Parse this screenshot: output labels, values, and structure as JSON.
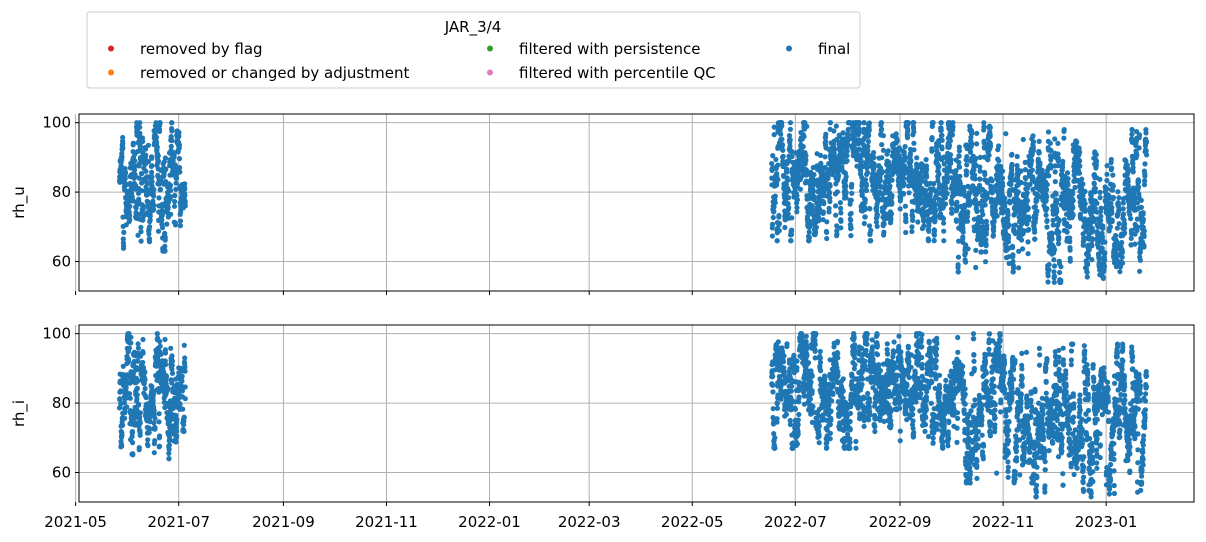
{
  "chart_data": [
    {
      "type": "scatter",
      "title": "",
      "xlabel": "",
      "ylabel": "rh_u",
      "ylim": [
        51.5,
        102.5
      ],
      "xlim": [
        "2021-05-03",
        "2023-02-22"
      ],
      "yticks": [
        60,
        80,
        100
      ],
      "grid": true,
      "sharex_ticklabels_hidden": true,
      "segments": [
        {
          "series": "final",
          "start": "2021-05-27",
          "end": "2021-07-05",
          "y_min": 63,
          "y_max": 100,
          "y_center": 82
        },
        {
          "series": "final",
          "start": "2022-06-17",
          "end": "2022-10-05",
          "y_min": 66,
          "y_max": 100,
          "y_center": 88
        },
        {
          "series": "final",
          "start": "2022-10-05",
          "end": "2022-11-20",
          "y_min": 57,
          "y_max": 100,
          "y_center": 80
        },
        {
          "series": "final",
          "start": "2022-11-20",
          "end": "2023-01-25",
          "y_min": 54,
          "y_max": 98,
          "y_center": 75
        }
      ]
    },
    {
      "type": "scatter",
      "title": "",
      "xlabel": "",
      "ylabel": "rh_i",
      "ylim": [
        51.5,
        102.5
      ],
      "xlim": [
        "2021-05-03",
        "2023-02-22"
      ],
      "yticks": [
        60,
        80,
        100
      ],
      "grid": true,
      "segments": [
        {
          "series": "final",
          "start": "2021-05-27",
          "end": "2021-07-05",
          "y_min": 64,
          "y_max": 100,
          "y_center": 82
        },
        {
          "series": "final",
          "start": "2022-06-17",
          "end": "2022-10-05",
          "y_min": 67,
          "y_max": 100,
          "y_center": 88
        },
        {
          "series": "final",
          "start": "2022-10-05",
          "end": "2022-11-20",
          "y_min": 57,
          "y_max": 100,
          "y_center": 80
        },
        {
          "series": "final",
          "start": "2022-11-20",
          "end": "2023-01-25",
          "y_min": 53,
          "y_max": 97,
          "y_center": 75
        }
      ]
    }
  ],
  "xticks": [
    "2021-05",
    "2021-07",
    "2021-09",
    "2021-11",
    "2022-01",
    "2022-03",
    "2022-05",
    "2022-07",
    "2022-09",
    "2022-11",
    "2023-01"
  ],
  "legend": {
    "title": "JAR_3/4",
    "placement": "top",
    "entries": [
      {
        "label": "removed by flag",
        "color": "#d62728"
      },
      {
        "label": "removed or changed by adjustment",
        "color": "#ff7f0e"
      },
      {
        "label": "filtered with persistence",
        "color": "#2ca02c"
      },
      {
        "label": "filtered with percentile QC",
        "color": "#e377c2"
      },
      {
        "label": "final",
        "color": "#1f77b4"
      }
    ]
  },
  "colors": {
    "final": "#1f77b4",
    "grid": "#b0b0b0",
    "axes": "#000000"
  }
}
